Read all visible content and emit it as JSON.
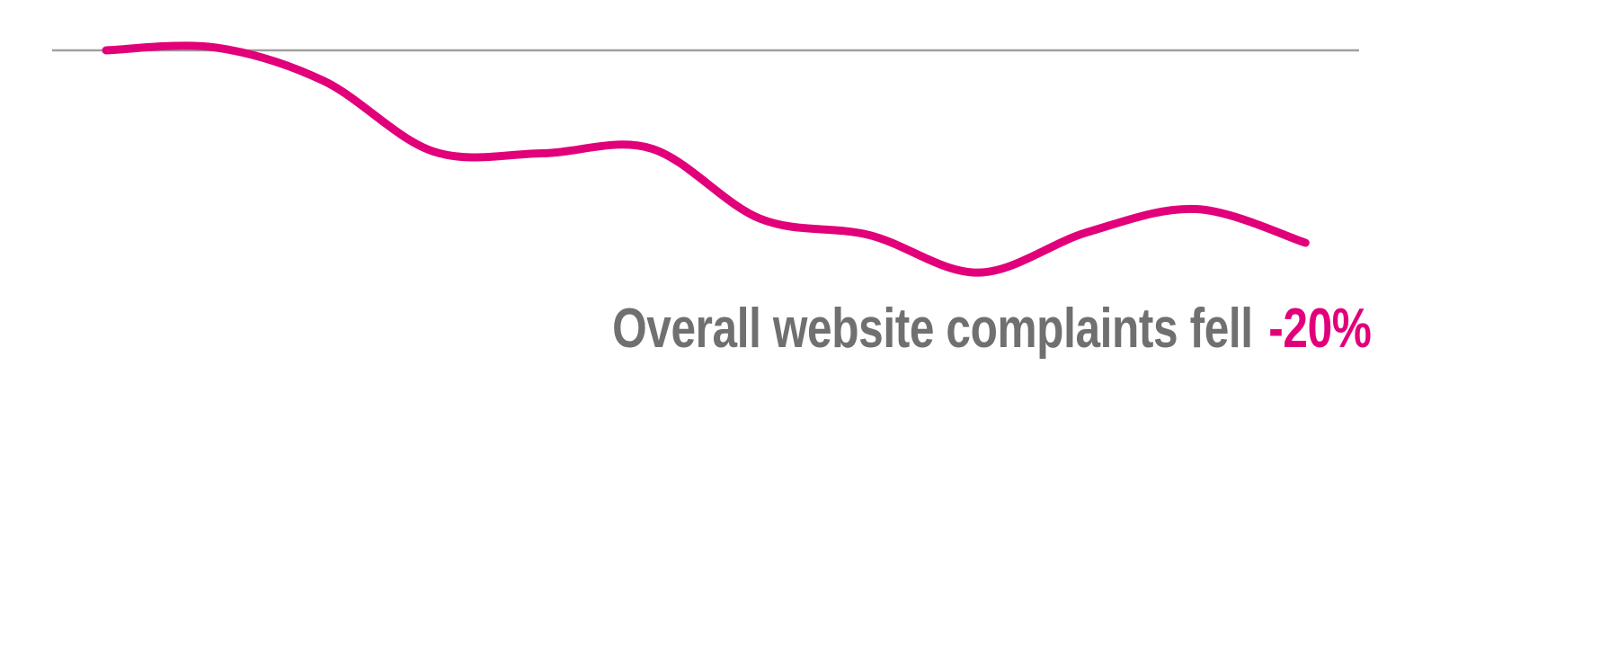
{
  "chart_data": {
    "type": "line",
    "title": "",
    "xlabel": "",
    "ylabel": "",
    "x": [
      1,
      2,
      3,
      4,
      5,
      6,
      7,
      8,
      9,
      10,
      11,
      12
    ],
    "values": [
      100,
      100.3,
      96.8,
      89.5,
      89.3,
      89.8,
      82.5,
      80.8,
      76.9,
      81.1,
      83.5,
      80
    ],
    "baseline": 100,
    "ylim": [
      75,
      101
    ],
    "grid": false,
    "drop_lines": true,
    "annotation": {
      "text": "Overall website complaints fell",
      "value": "-20%"
    },
    "colors": {
      "line": "#e2007a",
      "baseline": "#a0a0a0",
      "text": "#707070",
      "value": "#e2007a"
    }
  }
}
